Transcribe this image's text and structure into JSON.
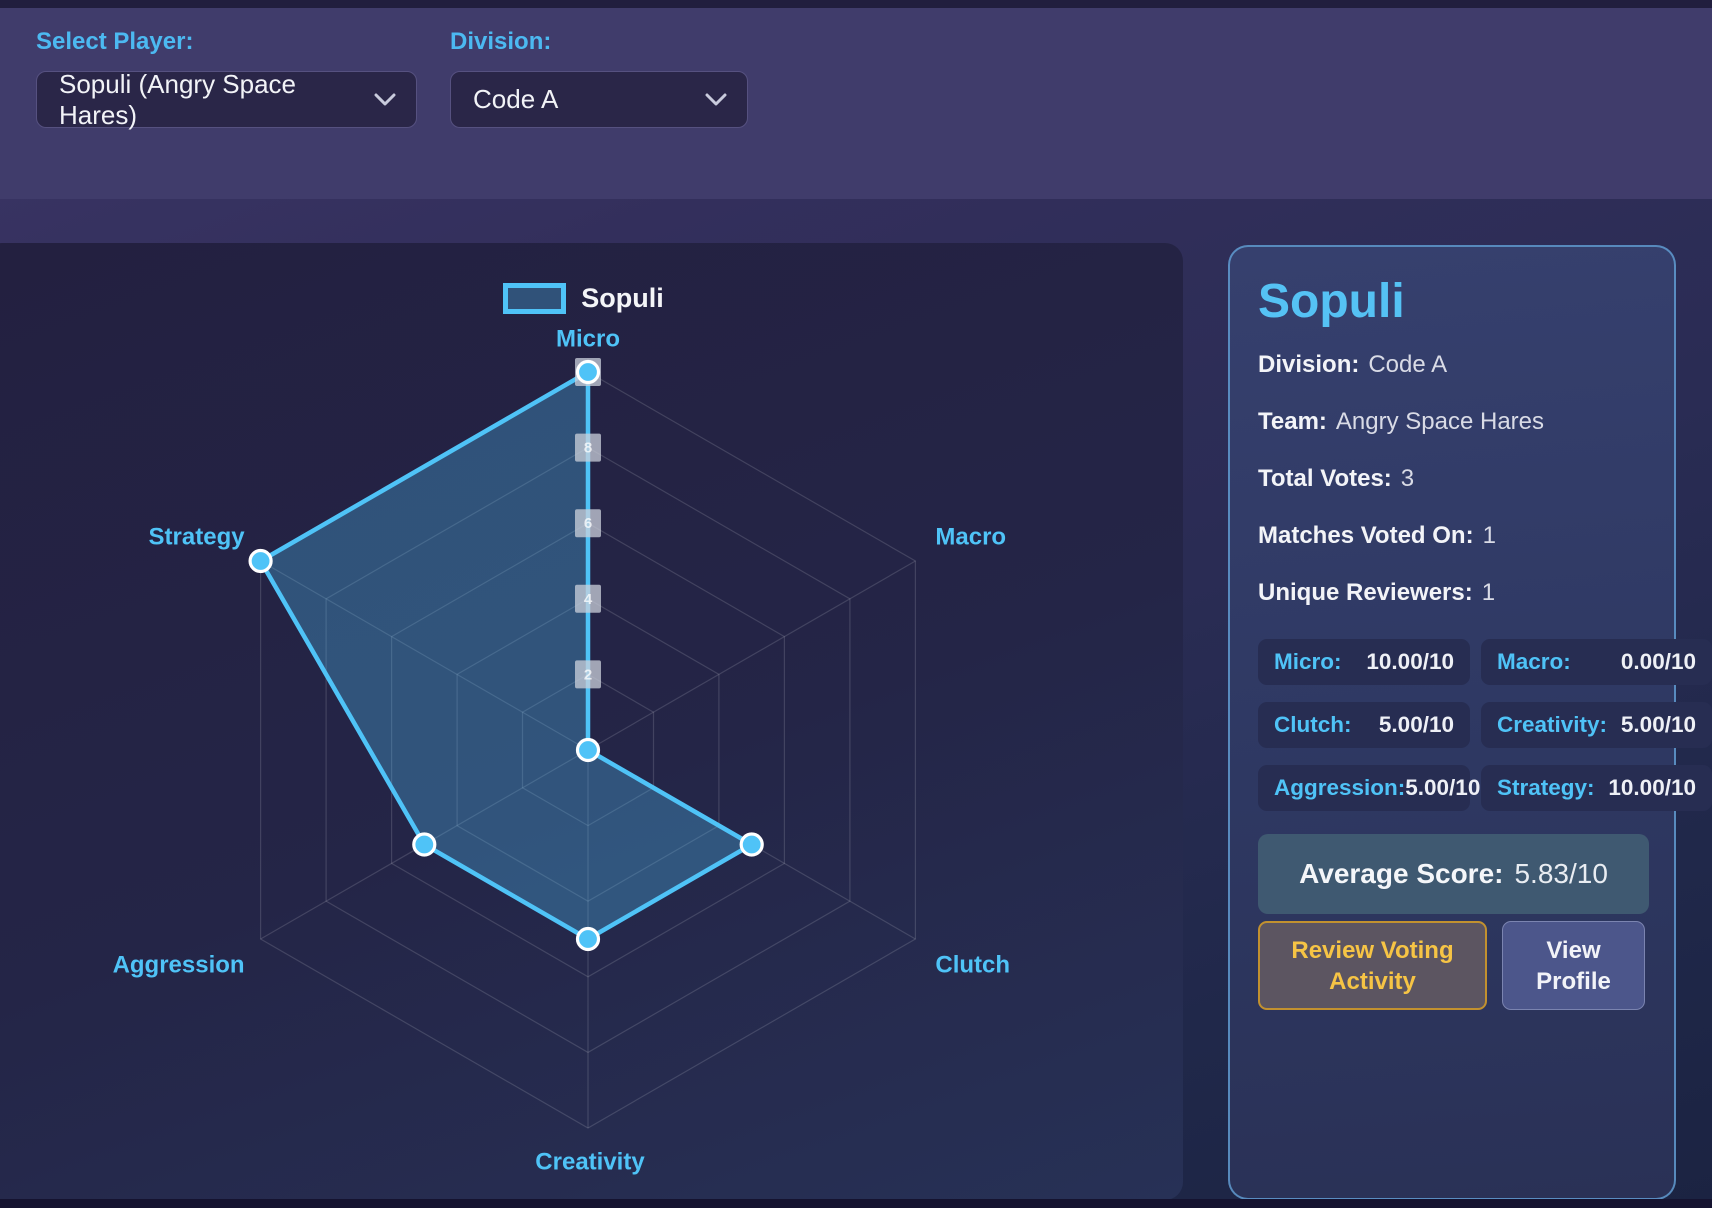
{
  "topbar": {
    "player_select": {
      "label": "Select Player:",
      "value": "Sopuli (Angry Space Hares)"
    },
    "division_select": {
      "label": "Division:",
      "value": "Code A"
    }
  },
  "chart_data": {
    "type": "radar",
    "categories": [
      "Micro",
      "Macro",
      "Clutch",
      "Creativity",
      "Aggression",
      "Strategy"
    ],
    "series": [
      {
        "name": "Sopuli",
        "values": [
          10,
          0,
          5,
          5,
          5,
          10
        ]
      }
    ],
    "rmin": 0,
    "rmax": 10,
    "tick_values": [
      2,
      4,
      6,
      8,
      10
    ],
    "legend_position": "top",
    "grid": true,
    "colors": {
      "series_stroke": "#4fc3f7",
      "series_fill": "rgba(79,195,247,0.30)",
      "axis_label": "#4fc3f7",
      "grid_line": "rgba(255,255,255,0.14)",
      "tick_backdrop": "rgba(203,208,219,0.75)",
      "tick_text": "rgba(255,255,255,0.75)"
    }
  },
  "player_card": {
    "name": "Sopuli",
    "fields": [
      {
        "label": "Division:",
        "value": "Code A"
      },
      {
        "label": "Team:",
        "value": "Angry Space Hares"
      },
      {
        "label": "Total Votes:",
        "value": "3"
      },
      {
        "label": "Matches Voted On:",
        "value": "1"
      },
      {
        "label": "Unique Reviewers:",
        "value": "1"
      }
    ],
    "stats": [
      {
        "label": "Micro:",
        "value": "10.00/10"
      },
      {
        "label": "Macro:",
        "value": "0.00/10"
      },
      {
        "label": "Clutch:",
        "value": "5.00/10"
      },
      {
        "label": "Creativity:",
        "value": "5.00/10"
      },
      {
        "label": "Aggression:",
        "value": "5.00/10"
      },
      {
        "label": "Strategy:",
        "value": "10.00/10"
      }
    ],
    "average": {
      "label": "Average Score:",
      "value": "5.83/10"
    },
    "buttons": {
      "review": "Review Voting Activity",
      "view": "View Profile"
    }
  },
  "theme": {
    "accent_blue": "#4fc3f7",
    "accent_yellow": "#f6c445",
    "panel_border_blue": "#63a0d6",
    "topbar_bg": "#403c6b",
    "card_bg": "#2e3862"
  }
}
